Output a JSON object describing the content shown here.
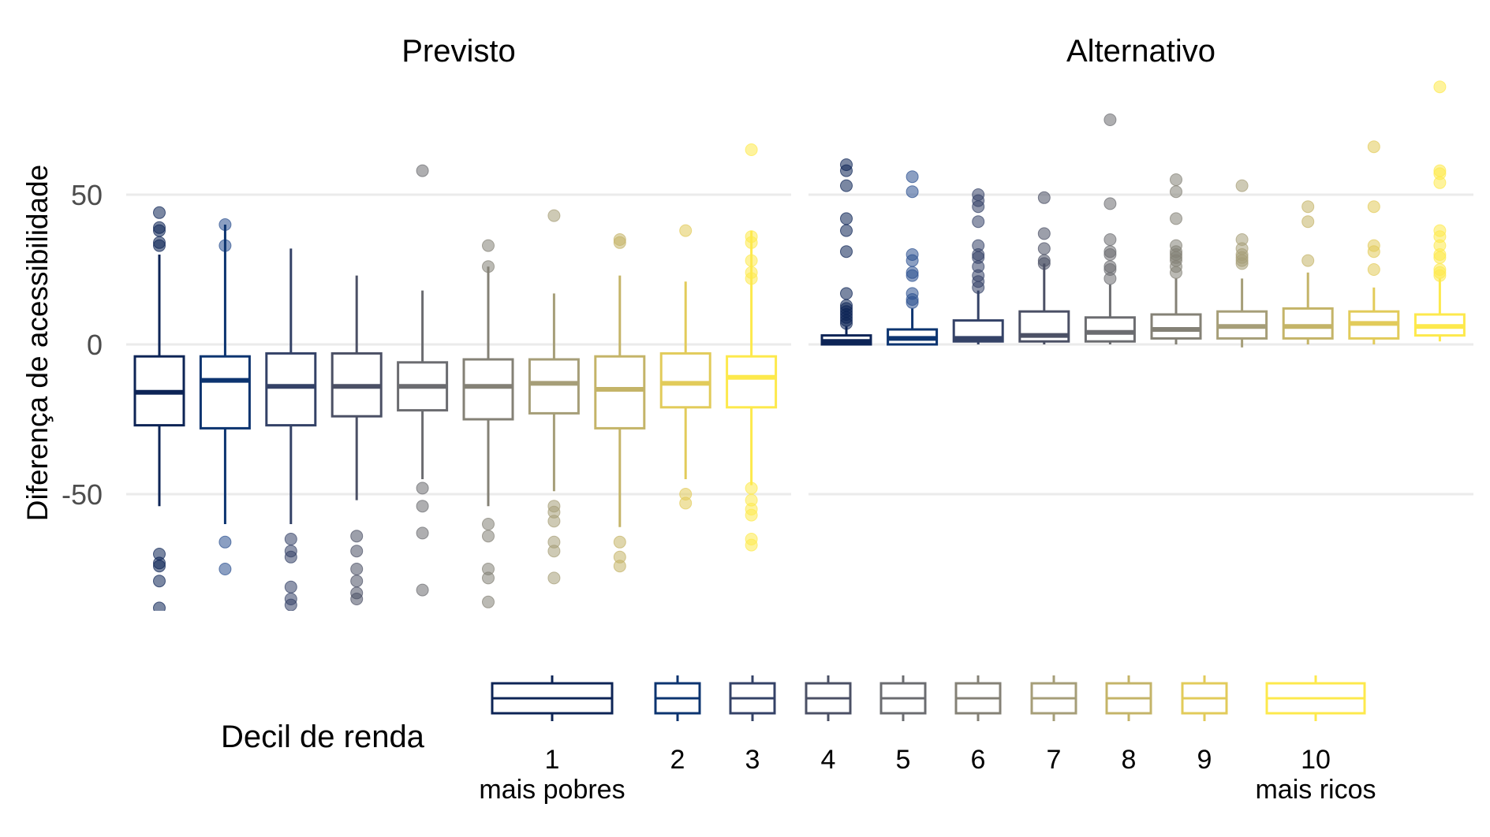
{
  "chart_data": {
    "type": "boxplot",
    "ylabel": "Diferença de acessibilidade",
    "ylim": [
      -88,
      88
    ],
    "yticks": [
      50,
      0,
      -50
    ],
    "ytick_labels": [
      "50",
      "0",
      "-50"
    ],
    "grid": true,
    "legend": {
      "title": "Decil de renda",
      "position": "bottom",
      "labels": [
        "1",
        "2",
        "3",
        "4",
        "5",
        "6",
        "7",
        "8",
        "9",
        "10"
      ],
      "sublabels": {
        "first": "mais pobres",
        "last": "mais ricos"
      }
    },
    "colors": [
      "#0d2456",
      "#0c3470",
      "#344267",
      "#4b5065",
      "#6b6c70",
      "#848176",
      "#a69e78",
      "#c4b468",
      "#e2cb5a",
      "#fde94c"
    ],
    "point_colors": [
      "#0d2456",
      "#2b5090",
      "#344267",
      "#4b5065",
      "#6b6c70",
      "#848176",
      "#a69e78",
      "#c4b468",
      "#e2cb5a",
      "#fde94c"
    ],
    "categories": [
      "1",
      "2",
      "3",
      "4",
      "5",
      "6",
      "7",
      "8",
      "9",
      "10"
    ],
    "panels": [
      {
        "title": "Previsto",
        "boxes": [
          {
            "q1": -27,
            "median": -16,
            "q3": -4,
            "whisker_low": -54,
            "whisker_high": 30,
            "outliers": [
              44,
              39,
              38,
              34,
              33,
              -70,
              -73,
              -74,
              -79,
              -88
            ]
          },
          {
            "q1": -28,
            "median": -12,
            "q3": -4,
            "whisker_low": -60,
            "whisker_high": 40,
            "outliers": [
              40,
              33,
              -66,
              -75
            ]
          },
          {
            "q1": -27,
            "median": -14,
            "q3": -3,
            "whisker_low": -60,
            "whisker_high": 32,
            "outliers": [
              -65,
              -69,
              -71,
              -81,
              -85,
              -87
            ]
          },
          {
            "q1": -24,
            "median": -14,
            "q3": -3,
            "whisker_low": -52,
            "whisker_high": 23,
            "outliers": [
              -64,
              -69,
              -75,
              -79,
              -83,
              -85
            ]
          },
          {
            "q1": -22,
            "median": -14,
            "q3": -6,
            "whisker_low": -45,
            "whisker_high": 18,
            "outliers": [
              58,
              -48,
              -54,
              -63,
              -82
            ]
          },
          {
            "q1": -25,
            "median": -14,
            "q3": -5,
            "whisker_low": -54,
            "whisker_high": 26,
            "outliers": [
              33,
              26,
              -60,
              -64,
              -75,
              -78,
              -86
            ]
          },
          {
            "q1": -23,
            "median": -13,
            "q3": -5,
            "whisker_low": -49,
            "whisker_high": 17,
            "outliers": [
              43,
              -54,
              -56,
              -59,
              -66,
              -69,
              -78
            ]
          },
          {
            "q1": -28,
            "median": -15,
            "q3": -4,
            "whisker_low": -61,
            "whisker_high": 23,
            "outliers": [
              35,
              34,
              -66,
              -71,
              -74
            ]
          },
          {
            "q1": -21,
            "median": -13,
            "q3": -3,
            "whisker_low": -45,
            "whisker_high": 21,
            "outliers": [
              38,
              -50,
              -53
            ]
          },
          {
            "q1": -21,
            "median": -11,
            "q3": -4,
            "whisker_low": -47,
            "whisker_high": 38,
            "outliers": [
              65,
              36,
              34,
              28,
              24,
              22,
              -48,
              -52,
              -55,
              -57,
              -65,
              -67
            ]
          }
        ]
      },
      {
        "title": "Alternativo",
        "boxes": [
          {
            "q1": 0,
            "median": 1,
            "q3": 3,
            "whisker_low": 0,
            "whisker_high": 6,
            "outliers": [
              60,
              58,
              53,
              42,
              38,
              31,
              17,
              13,
              12,
              11,
              10,
              9,
              8,
              7
            ]
          },
          {
            "q1": 0,
            "median": 2,
            "q3": 5,
            "whisker_low": 0,
            "whisker_high": 12,
            "outliers": [
              56,
              51,
              30,
              28,
              24,
              23,
              17,
              15,
              14
            ]
          },
          {
            "q1": 1,
            "median": 2,
            "q3": 8,
            "whisker_low": 0,
            "whisker_high": 18,
            "outliers": [
              50,
              48,
              46,
              41,
              33,
              30,
              29,
              26,
              23,
              21,
              19
            ]
          },
          {
            "q1": 1,
            "median": 3,
            "q3": 11,
            "whisker_low": 0,
            "whisker_high": 27,
            "outliers": [
              49,
              37,
              32,
              28,
              27
            ]
          },
          {
            "q1": 1,
            "median": 4,
            "q3": 9,
            "whisker_low": 0,
            "whisker_high": 20,
            "outliers": [
              75,
              47,
              35,
              31,
              30,
              26,
              25,
              22
            ]
          },
          {
            "q1": 2,
            "median": 5,
            "q3": 10,
            "whisker_low": 0,
            "whisker_high": 22,
            "outliers": [
              55,
              51,
              42,
              33,
              31,
              30,
              29,
              28,
              26,
              24
            ]
          },
          {
            "q1": 2,
            "median": 6,
            "q3": 11,
            "whisker_low": -1,
            "whisker_high": 22,
            "outliers": [
              53,
              35,
              32,
              30,
              29,
              28,
              27
            ]
          },
          {
            "q1": 2,
            "median": 6,
            "q3": 12,
            "whisker_low": 0,
            "whisker_high": 24,
            "outliers": [
              46,
              41,
              28
            ]
          },
          {
            "q1": 2,
            "median": 7,
            "q3": 11,
            "whisker_low": 0,
            "whisker_high": 19,
            "outliers": [
              66,
              46,
              33,
              31,
              25
            ]
          },
          {
            "q1": 3,
            "median": 6,
            "q3": 10,
            "whisker_low": 1,
            "whisker_high": 22,
            "outliers": [
              86,
              58,
              57,
              54,
              38,
              36,
              33,
              30,
              29,
              25,
              24,
              23
            ]
          }
        ]
      }
    ]
  }
}
